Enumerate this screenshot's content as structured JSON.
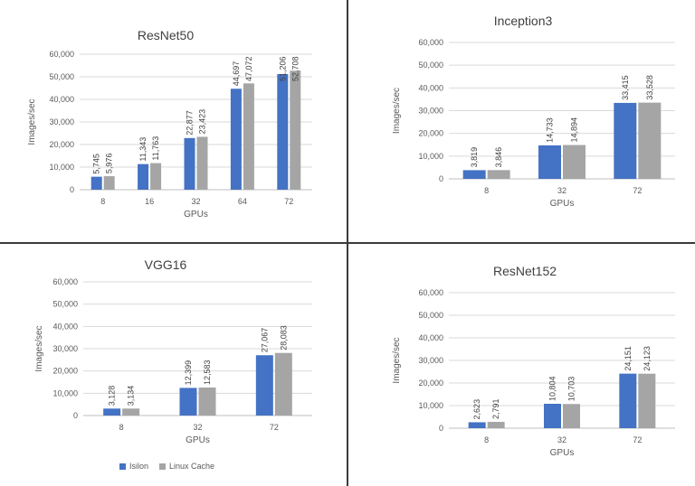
{
  "colors": {
    "isilon": "#4472C4",
    "linux_cache": "#A5A5A5",
    "grid": "#d9d9d9",
    "text": "#595959",
    "title": "#404040",
    "frame": "#3a3a3a"
  },
  "legend": {
    "series_a": "Isilon",
    "series_b": "Linux Cache"
  },
  "chart_data": [
    {
      "type": "bar",
      "title": "ResNet50",
      "xlabel": "GPUs",
      "ylabel": "Images/sec",
      "ylim": [
        0,
        60000
      ],
      "yticks": [
        "0",
        "10,000",
        "20,000",
        "30,000",
        "40,000",
        "50,000",
        "60,000"
      ],
      "categories": [
        "8",
        "16",
        "32",
        "64",
        "72"
      ],
      "series": [
        {
          "name": "Isilon",
          "values": [
            5745,
            11343,
            22877,
            44697,
            51206
          ],
          "labels": [
            "5,745",
            "11,343",
            "22,877",
            "44,697",
            "51,206"
          ]
        },
        {
          "name": "Linux Cache",
          "values": [
            5976,
            11763,
            23423,
            47072,
            52708
          ],
          "labels": [
            "5,976",
            "11,763",
            "23,423",
            "47,072",
            "52,708"
          ]
        }
      ],
      "grid": true,
      "legend": "none"
    },
    {
      "type": "bar",
      "title": "Inception3",
      "xlabel": "GPUs",
      "ylabel": "Images/sec",
      "ylim": [
        0,
        60000
      ],
      "yticks": [
        "0",
        "10,000",
        "20,000",
        "30,000",
        "40,000",
        "50,000",
        "60,000"
      ],
      "categories": [
        "8",
        "32",
        "72"
      ],
      "series": [
        {
          "name": "Isilon",
          "values": [
            3819,
            14733,
            33415
          ],
          "labels": [
            "3,819",
            "14,733",
            "33,415"
          ]
        },
        {
          "name": "Linux Cache",
          "values": [
            3846,
            14894,
            33528
          ],
          "labels": [
            "3,846",
            "14,894",
            "33,528"
          ]
        }
      ],
      "grid": true,
      "legend": "none"
    },
    {
      "type": "bar",
      "title": "VGG16",
      "xlabel": "GPUs",
      "ylabel": "Images/sec",
      "ylim": [
        0,
        60000
      ],
      "yticks": [
        "0",
        "10,000",
        "20,000",
        "30,000",
        "40,000",
        "50,000",
        "60,000"
      ],
      "categories": [
        "8",
        "32",
        "72"
      ],
      "series": [
        {
          "name": "Isilon",
          "values": [
            3128,
            12399,
            27067
          ],
          "labels": [
            "3,128",
            "12,399",
            "27,067"
          ]
        },
        {
          "name": "Linux Cache",
          "values": [
            3134,
            12583,
            28083
          ],
          "labels": [
            "3,134",
            "12,583",
            "28,083"
          ]
        }
      ],
      "grid": true,
      "legend": "bottom"
    },
    {
      "type": "bar",
      "title": "ResNet152",
      "xlabel": "GPUs",
      "ylabel": "Images/sec",
      "ylim": [
        0,
        60000
      ],
      "yticks": [
        "0",
        "10,000",
        "20,000",
        "30,000",
        "40,000",
        "50,000",
        "60,000"
      ],
      "categories": [
        "8",
        "32",
        "72"
      ],
      "series": [
        {
          "name": "Isilon",
          "values": [
            2623,
            10804,
            24151
          ],
          "labels": [
            "2,623",
            "10,804",
            "24,151"
          ]
        },
        {
          "name": "Linux Cache",
          "values": [
            2791,
            10703,
            24123
          ],
          "labels": [
            "2,791",
            "10,703",
            "24,123"
          ]
        }
      ],
      "grid": true,
      "legend": "none"
    }
  ]
}
